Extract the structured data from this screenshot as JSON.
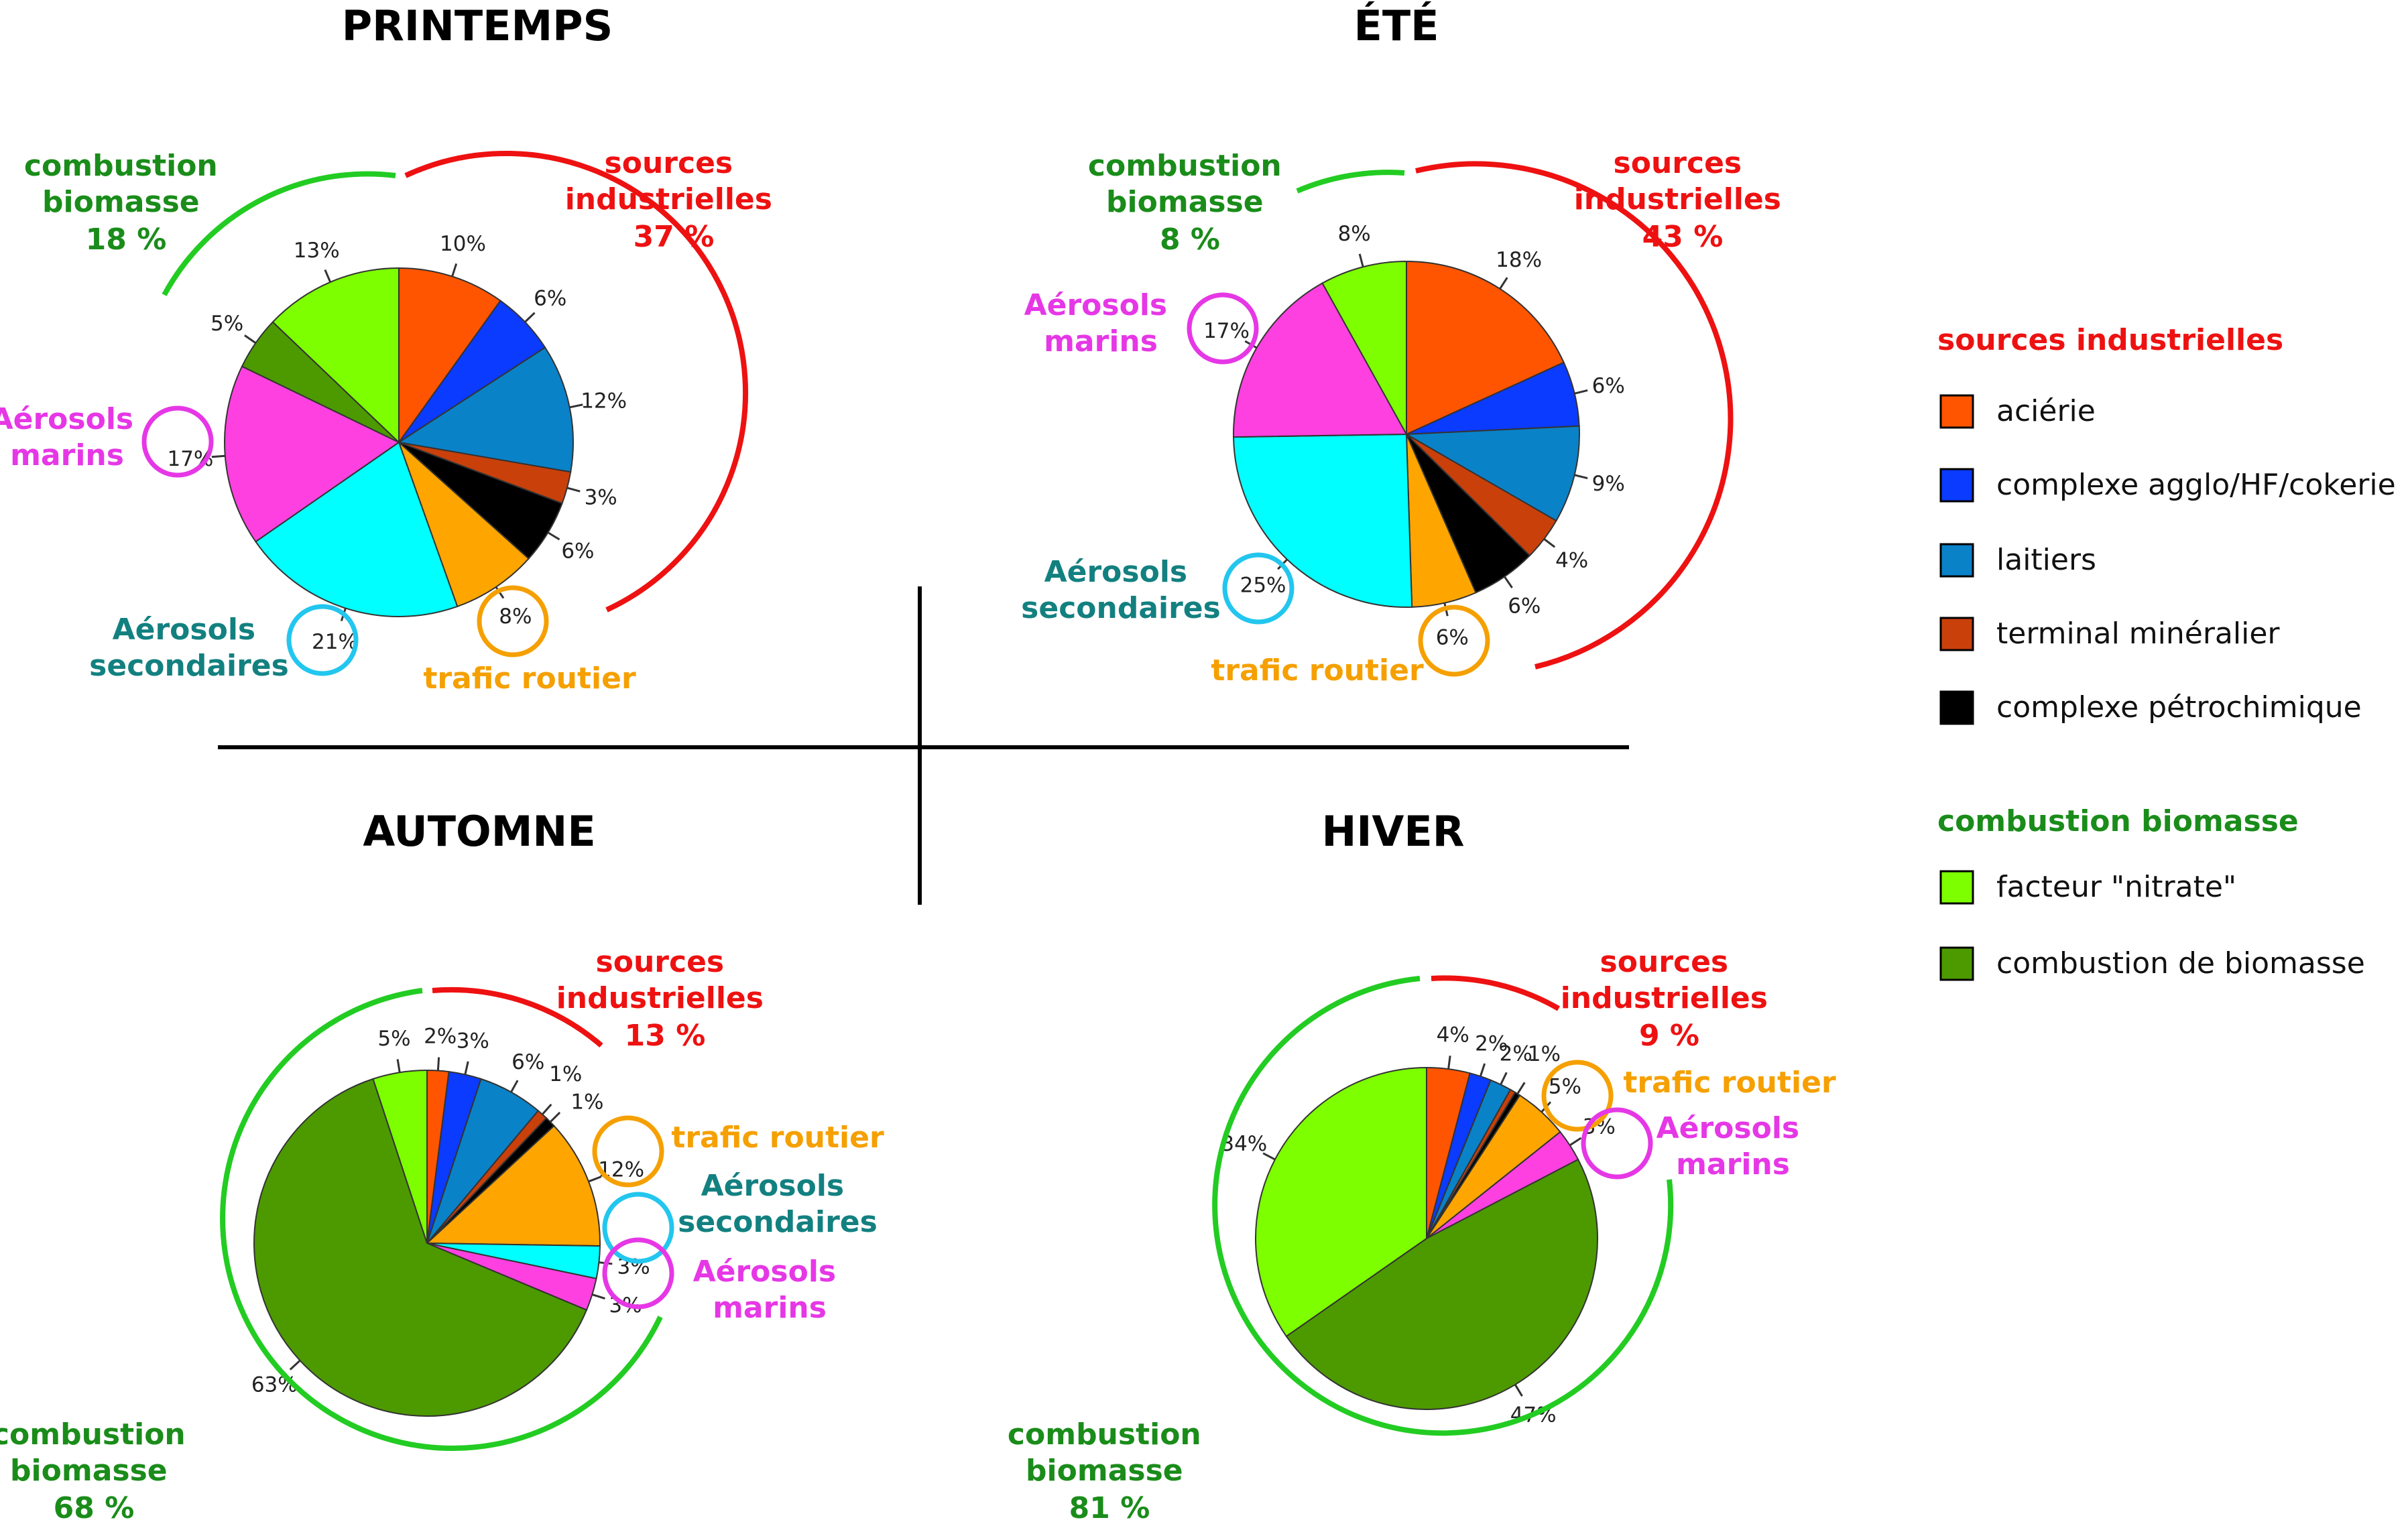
{
  "colors": {
    "industry_red": "#ee1111",
    "biomass_green": "#1a8c1a",
    "marine_magenta": "#e637e6",
    "secondary_teal": "#138080",
    "traffic_orange": "#f5a000",
    "arc_green": "#22cc22",
    "circle_cyan": "#22c6ee"
  },
  "legend": {
    "industry_title": "sources industrielles",
    "industry_items": [
      {
        "label": "aciérie",
        "color": "#ff5500"
      },
      {
        "label": "complexe agglo/HF/cokerie",
        "color": "#0a3bff"
      },
      {
        "label": "laitiers",
        "color": "#0a82c8"
      },
      {
        "label": "terminal minéralier",
        "color": "#c9400b"
      },
      {
        "label": "complexe pétrochimique",
        "color": "#000000"
      }
    ],
    "biomass_title": "combustion biomasse",
    "biomass_items": [
      {
        "label": "facteur \"nitrate\"",
        "color": "#7dff00"
      },
      {
        "label": "combustion de biomasse",
        "color": "#4c9a00"
      }
    ]
  },
  "chart_data": [
    {
      "type": "pie",
      "title": "PRINTEMPS",
      "slices": [
        {
          "label": "aciérie",
          "value": 10,
          "text": "10%",
          "color": "#ff5500"
        },
        {
          "label": "complexe agglo/HF/cokerie",
          "value": 6,
          "text": "6%",
          "color": "#0a3bff"
        },
        {
          "label": "laitiers",
          "value": 12,
          "text": "12%",
          "color": "#0a82c8"
        },
        {
          "label": "terminal minéralier",
          "value": 3,
          "text": "3%",
          "color": "#c9400b"
        },
        {
          "label": "complexe pétrochimique",
          "value": 6,
          "text": "6%",
          "color": "#000000"
        },
        {
          "label": "trafic routier",
          "value": 8,
          "text": "8%",
          "color": "#ffa500"
        },
        {
          "label": "Aérosols secondaires",
          "value": 21,
          "text": "21%",
          "color": "#00ffff"
        },
        {
          "label": "Aérosols marins",
          "value": 17,
          "text": "17%",
          "color": "#ff40e0"
        },
        {
          "label": "combustion de biomasse",
          "value": 5,
          "text": "5%",
          "color": "#4c9a00"
        },
        {
          "label": "facteur \"nitrate\"",
          "value": 13,
          "text": "13%",
          "color": "#7dff00"
        }
      ],
      "groups": {
        "industry": {
          "line1": "sources",
          "line2": "industrielles",
          "value": "37 %"
        },
        "biomass": {
          "line1": "combustion",
          "line2": "biomasse",
          "value": "18 %"
        },
        "marine": {
          "line1": "Aérosols",
          "line2": "marins"
        },
        "secondary": {
          "line1": "Aérosols",
          "line2": "secondaires"
        },
        "traffic": {
          "line1": "trafic routier"
        }
      }
    },
    {
      "type": "pie",
      "title": "ÉTÉ",
      "slices": [
        {
          "label": "aciérie",
          "value": 18,
          "text": "18%",
          "color": "#ff5500"
        },
        {
          "label": "complexe agglo/HF/cokerie",
          "value": 6,
          "text": "6%",
          "color": "#0a3bff"
        },
        {
          "label": "laitiers",
          "value": 9,
          "text": "9%",
          "color": "#0a82c8"
        },
        {
          "label": "terminal minéralier",
          "value": 4,
          "text": "4%",
          "color": "#c9400b"
        },
        {
          "label": "complexe pétrochimique",
          "value": 6,
          "text": "6%",
          "color": "#000000"
        },
        {
          "label": "trafic routier",
          "value": 6,
          "text": "6%",
          "color": "#ffa500"
        },
        {
          "label": "Aérosols secondaires",
          "value": 25,
          "text": "25%",
          "color": "#00ffff"
        },
        {
          "label": "Aérosols marins",
          "value": 17,
          "text": "17%",
          "color": "#ff40e0"
        },
        {
          "label": "facteur \"nitrate\"",
          "value": 8,
          "text": "8%",
          "color": "#7dff00"
        }
      ],
      "groups": {
        "industry": {
          "line1": "sources",
          "line2": "industrielles",
          "value": "43 %"
        },
        "biomass": {
          "line1": "combustion",
          "line2": "biomasse",
          "value": "8 %"
        },
        "marine": {
          "line1": "Aérosols",
          "line2": "marins"
        },
        "secondary": {
          "line1": "Aérosols",
          "line2": "secondaires"
        },
        "traffic": {
          "line1": "trafic routier"
        }
      }
    },
    {
      "type": "pie",
      "title": "AUTOMNE",
      "slices": [
        {
          "label": "aciérie",
          "value": 2,
          "text": "2%",
          "color": "#ff5500"
        },
        {
          "label": "complexe agglo/HF/cokerie",
          "value": 3,
          "text": "3%",
          "color": "#0a3bff"
        },
        {
          "label": "laitiers",
          "value": 6,
          "text": "6%",
          "color": "#0a82c8"
        },
        {
          "label": "terminal minéralier",
          "value": 1,
          "text": "1%",
          "color": "#c9400b"
        },
        {
          "label": "complexe pétrochimique",
          "value": 1,
          "text": "1%",
          "color": "#000000"
        },
        {
          "label": "trafic routier",
          "value": 12,
          "text": "12%",
          "color": "#ffa500"
        },
        {
          "label": "Aérosols secondaires",
          "value": 3,
          "text": "3%",
          "color": "#00ffff"
        },
        {
          "label": "Aérosols marins",
          "value": 3,
          "text": "3%",
          "color": "#ff40e0"
        },
        {
          "label": "combustion de biomasse",
          "value": 63,
          "text": "63%",
          "color": "#4c9a00"
        },
        {
          "label": "facteur \"nitrate\"",
          "value": 5,
          "text": "5%",
          "color": "#7dff00"
        }
      ],
      "groups": {
        "industry": {
          "line1": "sources",
          "line2": "industrielles",
          "value": "13 %"
        },
        "biomass": {
          "line1": "combustion",
          "line2": "biomasse",
          "value": "68 %"
        },
        "marine": {
          "line1": "Aérosols",
          "line2": "marins"
        },
        "secondary": {
          "line1": "Aérosols",
          "line2": "secondaires"
        },
        "traffic": {
          "line1": "trafic routier"
        }
      }
    },
    {
      "type": "pie",
      "title": "HIVER",
      "slices": [
        {
          "label": "aciérie",
          "value": 4,
          "text": "4%",
          "color": "#ff5500"
        },
        {
          "label": "complexe agglo/HF/cokerie",
          "value": 2,
          "text": "2%",
          "color": "#0a3bff"
        },
        {
          "label": "laitiers",
          "value": 2,
          "text": "2%",
          "color": "#0a82c8"
        },
        {
          "label": "terminal minéralier",
          "value": 0.5,
          "text": "",
          "color": "#c9400b"
        },
        {
          "label": "complexe pétrochimique",
          "value": 0.5,
          "text": "1%",
          "color": "#000000"
        },
        {
          "label": "trafic routier",
          "value": 5,
          "text": "5%",
          "color": "#ffa500"
        },
        {
          "label": "Aérosols marins",
          "value": 3,
          "text": "3%",
          "color": "#ff40e0"
        },
        {
          "label": "combustion de biomasse",
          "value": 47,
          "text": "47%",
          "color": "#4c9a00"
        },
        {
          "label": "facteur \"nitrate\"",
          "value": 34,
          "text": "34%",
          "color": "#7dff00"
        }
      ],
      "groups": {
        "industry": {
          "line1": "sources",
          "line2": "industrielles",
          "value": "9 %"
        },
        "biomass": {
          "line1": "combustion",
          "line2": "biomasse",
          "value": "81 %"
        },
        "marine": {
          "line1": "Aérosols",
          "line2": "marins"
        },
        "traffic": {
          "line1": "trafic routier"
        }
      }
    }
  ]
}
